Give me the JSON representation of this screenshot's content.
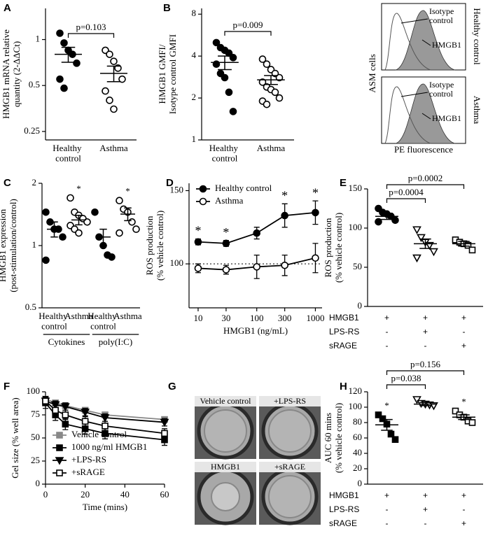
{
  "chart_data": [
    {
      "type": "dotplot",
      "panel": "A",
      "categories": [
        "Healthy control",
        "Asthma"
      ],
      "points": [
        [
          1.1,
          0.95,
          0.85,
          0.8,
          0.7,
          0.55,
          0.48
        ],
        [
          0.85,
          0.8,
          0.72,
          0.65,
          0.55,
          0.46,
          0.4,
          0.35
        ]
      ],
      "means": [
        0.8,
        0.6
      ],
      "errors": [
        0.09,
        0.07
      ],
      "markers": [
        "circle-filled",
        "circle-open"
      ],
      "color": "#000000",
      "ylabel": [
        "HMGB1 mRNA relative",
        "quantity (2-ΔΔCt)"
      ],
      "log_y": true,
      "ylim": [
        0.22,
        1.6
      ],
      "yticks": [
        0.25,
        0.5,
        1
      ],
      "comparisons": [
        {
          "from": 0,
          "to": 1,
          "label": "p=0.103"
        }
      ]
    },
    {
      "type": "dotplot",
      "panel": "B",
      "categories": [
        "Healthy control",
        "Asthma"
      ],
      "points": [
        [
          5,
          4.6,
          4.4,
          4.2,
          3.9,
          3.5,
          3,
          2.8,
          2.2,
          1.6
        ],
        [
          3.8,
          3.5,
          3.2,
          3,
          2.8,
          2.6,
          2.4,
          2.3,
          2.2,
          2,
          1.9,
          1.8
        ]
      ],
      "means": [
        3.6,
        2.7
      ],
      "errors": [
        0.4,
        0.2
      ],
      "markers": [
        "circle-filled",
        "circle-open"
      ],
      "color": "#000000",
      "ylabel": [
        "HMGB1 GMFI/",
        "Isotype control GMFI"
      ],
      "log_y": true,
      "ylim": [
        1,
        8.8
      ],
      "yticks": [
        1,
        2,
        4,
        8
      ],
      "comparisons": [
        {
          "from": 0,
          "to": 1,
          "label": "p=0.009"
        }
      ]
    },
    {
      "type": "flow",
      "isotype_label": "Isotype control",
      "hmgb1_label": "HMGB1",
      "ylabel": "ASM cells",
      "xlabel": "PE fluorescence",
      "conditions": [
        "Healthy control",
        "Asthma"
      ]
    },
    {
      "type": "dotplot",
      "panel": "C",
      "categories": [
        "Healthy control",
        "Asthma",
        "Healthy control",
        "Asthma"
      ],
      "points": [
        [
          1.45,
          1.3,
          1.2,
          1.2,
          1.1,
          0.85
        ],
        [
          1.7,
          1.45,
          1.4,
          1.35,
          1.3,
          1.25,
          1.2,
          1.15
        ],
        [
          1.45,
          1.1,
          1,
          0.9,
          0.88
        ],
        [
          1.65,
          1.5,
          1.45,
          1.3,
          1.2,
          1.15
        ]
      ],
      "means": [
        1.2,
        1.33,
        1.1,
        1.42
      ],
      "errors": [
        0.1,
        0.07,
        0.1,
        0.1
      ],
      "markers": [
        "circle-filled",
        "circle-open",
        "circle-filled",
        "circle-open"
      ],
      "color": "#000000",
      "ylabel": [
        "HMGB1 expression",
        "(post-stimulation/control)"
      ],
      "log_y": true,
      "ylim": [
        0.5,
        2
      ],
      "yticks": [
        0.5,
        1,
        2
      ],
      "starred": [
        false,
        true,
        false,
        true
      ],
      "star_label": "*",
      "groups": [
        {
          "label": "Cytokines",
          "from": 0,
          "to": 1
        },
        {
          "label": "poly(I:C)",
          "from": 2,
          "to": 3
        }
      ]
    },
    {
      "type": "line",
      "panel": "D",
      "x": [
        10,
        30,
        100,
        300,
        1000
      ],
      "log_x": true,
      "xlim": [
        7,
        1300
      ],
      "xticks": [
        10,
        30,
        100,
        300,
        1000
      ],
      "xlabel": "HMGB1 (ng/mL)",
      "ylabel": [
        "ROS production",
        "(% vehicle control)"
      ],
      "ylim": [
        70,
        155
      ],
      "yticks": [
        100,
        150
      ],
      "hline": 100,
      "legend": "upper left",
      "star_label": "*",
      "series": [
        {
          "name": "Healthy control",
          "color": "#000000",
          "marker": "circle-filled",
          "values": [
            115,
            114,
            121,
            133,
            135
          ],
          "errors": [
            2,
            2,
            4,
            8,
            8
          ],
          "starred": [
            true,
            true,
            false,
            true,
            true
          ]
        },
        {
          "name": "Asthma",
          "color": "#000000",
          "marker": "circle-open",
          "values": [
            97,
            96,
            98,
            99,
            104
          ],
          "errors": [
            3,
            3,
            8,
            7,
            10
          ]
        }
      ]
    },
    {
      "type": "dotplot",
      "panel": "E",
      "points": [
        [
          125,
          120,
          118,
          115,
          110,
          108
        ],
        [
          98,
          88,
          82,
          78,
          70,
          62
        ],
        [
          85,
          82,
          80,
          78,
          72
        ]
      ],
      "means": [
        115,
        80,
        80
      ],
      "errors": [
        4,
        6,
        3
      ],
      "markers": [
        "circle-filled",
        "triangle-open",
        "square-open"
      ],
      "color": "#000000",
      "ylabel": [
        "ROS production",
        "(% vehicle control)"
      ],
      "ylim": [
        0,
        150
      ],
      "yticks": [
        0,
        50,
        100,
        150
      ],
      "comparisons": [
        {
          "from": 0,
          "to": 1,
          "label": "p=0.0004"
        },
        {
          "from": 0,
          "to": 2,
          "label": "p=0.0002"
        }
      ],
      "treatments": [
        {
          "name": "HMGB1",
          "signs": [
            "+",
            "+",
            "+"
          ]
        },
        {
          "name": "LPS-RS",
          "signs": [
            "-",
            "+",
            "-"
          ]
        },
        {
          "name": "sRAGE",
          "signs": [
            "-",
            "-",
            "+"
          ]
        }
      ]
    },
    {
      "type": "line",
      "panel": "F",
      "x": [
        0,
        5,
        10,
        20,
        30,
        60
      ],
      "xlim": [
        0,
        60
      ],
      "xticks": [
        0,
        20,
        40,
        60
      ],
      "xlabel": "Time (mins)",
      "ylabel": "Gel size (% well area)",
      "ylim": [
        0,
        100
      ],
      "yticks": [
        0,
        25,
        50,
        75,
        100
      ],
      "legend": "lower left",
      "series": [
        {
          "name": "Vehicle control",
          "color": "#888888",
          "marker": "square-filled",
          "values": [
            92,
            88,
            85,
            80,
            75,
            70
          ],
          "errors": [
            3,
            3,
            3,
            3,
            3,
            3
          ]
        },
        {
          "name": "1000 ng/ml HMGB1",
          "color": "#000000",
          "marker": "square-filled",
          "values": [
            88,
            75,
            65,
            60,
            55,
            48
          ],
          "errors": [
            6,
            6,
            6,
            6,
            6,
            6
          ]
        },
        {
          "name": "+LPS-RS",
          "color": "#000000",
          "marker": "triangle-filled",
          "values": [
            90,
            86,
            84,
            78,
            72,
            67
          ],
          "errors": [
            4,
            4,
            4,
            4,
            4,
            4
          ]
        },
        {
          "name": "+sRAGE",
          "color": "#000000",
          "marker": "square-open",
          "values": [
            90,
            80,
            75,
            68,
            63,
            55
          ],
          "errors": [
            5,
            5,
            5,
            5,
            5,
            5
          ]
        }
      ]
    },
    {
      "type": "images",
      "panel": "G",
      "labels": [
        "Vehicle control",
        "+LPS-RS",
        "HMGB1",
        "+sRAGE"
      ]
    },
    {
      "type": "dotplot",
      "panel": "H",
      "points": [
        [
          90,
          85,
          78,
          65,
          58
        ],
        [
          110,
          105,
          104,
          103,
          102
        ],
        [
          95,
          90,
          87,
          82,
          80
        ]
      ],
      "means": [
        77,
        104,
        87
      ],
      "errors": [
        7,
        2,
        3
      ],
      "markers": [
        "square-filled",
        "triangle-open",
        "square-open"
      ],
      "color": "#000000",
      "ylabel": [
        "AUC 60 mins",
        "(% vehicle control)"
      ],
      "ylim": [
        0,
        120
      ],
      "yticks": [
        0,
        20,
        40,
        60,
        80,
        100,
        120
      ],
      "starred": [
        true,
        false,
        true
      ],
      "star_label": "*",
      "comparisons": [
        {
          "from": 0,
          "to": 1,
          "label": "p=0.038"
        },
        {
          "from": 0,
          "to": 2,
          "label": "p=0.156"
        }
      ],
      "treatments": [
        {
          "name": "HMGB1",
          "signs": [
            "+",
            "+",
            "+"
          ]
        },
        {
          "name": "LPS-RS",
          "signs": [
            "-",
            "+",
            "-"
          ]
        },
        {
          "name": "sRAGE",
          "signs": [
            "-",
            "-",
            "+"
          ]
        }
      ]
    }
  ]
}
